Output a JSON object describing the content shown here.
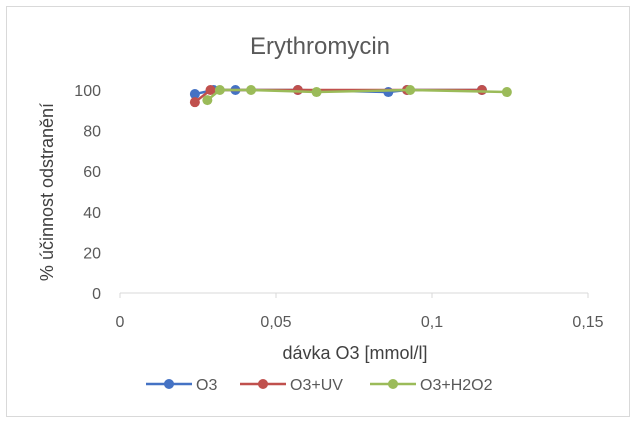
{
  "chart_data": {
    "type": "scatter",
    "title": "Erythromycin",
    "xlabel": "dávka O3 [mmol/l]",
    "ylabel": "% účinnost odstranění",
    "xlim": [
      0,
      0.15
    ],
    "ylim": [
      0,
      100
    ],
    "xticks": [
      0,
      0.05,
      0.1,
      0.15
    ],
    "xtick_labels": [
      "0",
      "0,05",
      "0,1",
      "0,15"
    ],
    "yticks": [
      0,
      20,
      40,
      60,
      80,
      100
    ],
    "ytick_labels": [
      "0",
      "20",
      "40",
      "60",
      "80",
      "100"
    ],
    "grid": false,
    "legend_position": "bottom",
    "series": [
      {
        "name": "O3",
        "color": "#4472c4",
        "points": [
          [
            0.024,
            98
          ],
          [
            0.03,
            100
          ],
          [
            0.037,
            100
          ],
          [
            0.057,
            100
          ],
          [
            0.086,
            99
          ],
          [
            0.092,
            100
          ],
          [
            0.116,
            100
          ]
        ]
      },
      {
        "name": "O3+UV",
        "color": "#c0504d",
        "points": [
          [
            0.024,
            94
          ],
          [
            0.029,
            100
          ],
          [
            0.057,
            100
          ],
          [
            0.092,
            100
          ],
          [
            0.116,
            100
          ]
        ]
      },
      {
        "name": "O3+H2O2",
        "color": "#9bbb59",
        "points": [
          [
            0.028,
            95
          ],
          [
            0.032,
            100
          ],
          [
            0.042,
            100
          ],
          [
            0.063,
            99
          ],
          [
            0.093,
            100
          ],
          [
            0.124,
            99
          ]
        ]
      }
    ]
  }
}
